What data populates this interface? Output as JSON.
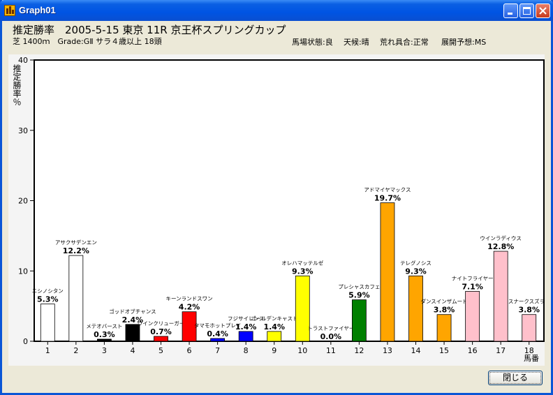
{
  "window": {
    "title": "Graph01"
  },
  "header": {
    "title_line": "推定勝率　2005-5-15  東京  11R  京王杯スプリングカップ",
    "info_line": "芝 1400ｍ　Grade:GⅡ  サラ４歳以上  18頭",
    "conditions": [
      "馬場状態:良",
      "天候:晴",
      "荒れ具合:正常",
      "展開予想:MS"
    ]
  },
  "buttons": {
    "close_label": "閉じる"
  },
  "colors": {
    "title_bar": "#0054e3",
    "plot_bg": "#f4f4f4"
  },
  "chart_data": {
    "type": "bar",
    "title": "推定勝率",
    "ylabel": "推定勝率％",
    "xlabel": "馬番",
    "ylim": [
      0,
      40
    ],
    "yticks": [
      0,
      10,
      20,
      30,
      40
    ],
    "grid": false,
    "bars": [
      {
        "number": "1",
        "horse": "ニシノシタン",
        "value": 5.3,
        "label": "5.3%",
        "color": "#ffffff"
      },
      {
        "number": "2",
        "horse": "アサクサデンエン",
        "value": 12.2,
        "label": "12.2%",
        "color": "#ffffff"
      },
      {
        "number": "3",
        "horse": "メテオバースト",
        "value": 0.3,
        "label": "0.3%",
        "color": "#000000"
      },
      {
        "number": "4",
        "horse": "ゴッドオブチャンス",
        "value": 2.4,
        "label": "2.4%",
        "color": "#000000"
      },
      {
        "number": "5",
        "horse": "ウインクリューガー",
        "value": 0.7,
        "label": "0.7%",
        "color": "#ff0000"
      },
      {
        "number": "6",
        "horse": "キーンランドスワン",
        "value": 4.2,
        "label": "4.2%",
        "color": "#ff0000"
      },
      {
        "number": "7",
        "horse": "タマモホットプレイ",
        "value": 0.4,
        "label": "0.4%",
        "color": "#0000ff"
      },
      {
        "number": "8",
        "horse": "フジサイレンス",
        "value": 1.4,
        "label": "1.4%",
        "color": "#0000ff"
      },
      {
        "number": "9",
        "horse": "ゴールデンキャスト",
        "value": 1.4,
        "label": "1.4%",
        "color": "#ffff00"
      },
      {
        "number": "10",
        "horse": "オレハマッテルゼ",
        "value": 9.3,
        "label": "9.3%",
        "color": "#ffff00"
      },
      {
        "number": "11",
        "horse": "トラストファイヤー",
        "value": 0.0,
        "label": "0.0%",
        "color": "#008000"
      },
      {
        "number": "12",
        "horse": "プレシャスカフェ",
        "value": 5.9,
        "label": "5.9%",
        "color": "#008000"
      },
      {
        "number": "13",
        "horse": "アドマイヤマックス",
        "value": 19.7,
        "label": "19.7%",
        "color": "#ffa500"
      },
      {
        "number": "14",
        "horse": "テレグノシス",
        "value": 9.3,
        "label": "9.3%",
        "color": "#ffa500"
      },
      {
        "number": "15",
        "horse": "ダンスインザムード",
        "value": 3.8,
        "label": "3.8%",
        "color": "#ffa500"
      },
      {
        "number": "16",
        "horse": "ナイトフライヤー",
        "value": 7.1,
        "label": "7.1%",
        "color": "#ffc0cb"
      },
      {
        "number": "17",
        "horse": "ウインラディウス",
        "value": 12.8,
        "label": "12.8%",
        "color": "#ffc0cb"
      },
      {
        "number": "18",
        "horse": "スナークスズラン",
        "value": 3.8,
        "label": "3.8%",
        "color": "#ffc0cb"
      }
    ]
  }
}
